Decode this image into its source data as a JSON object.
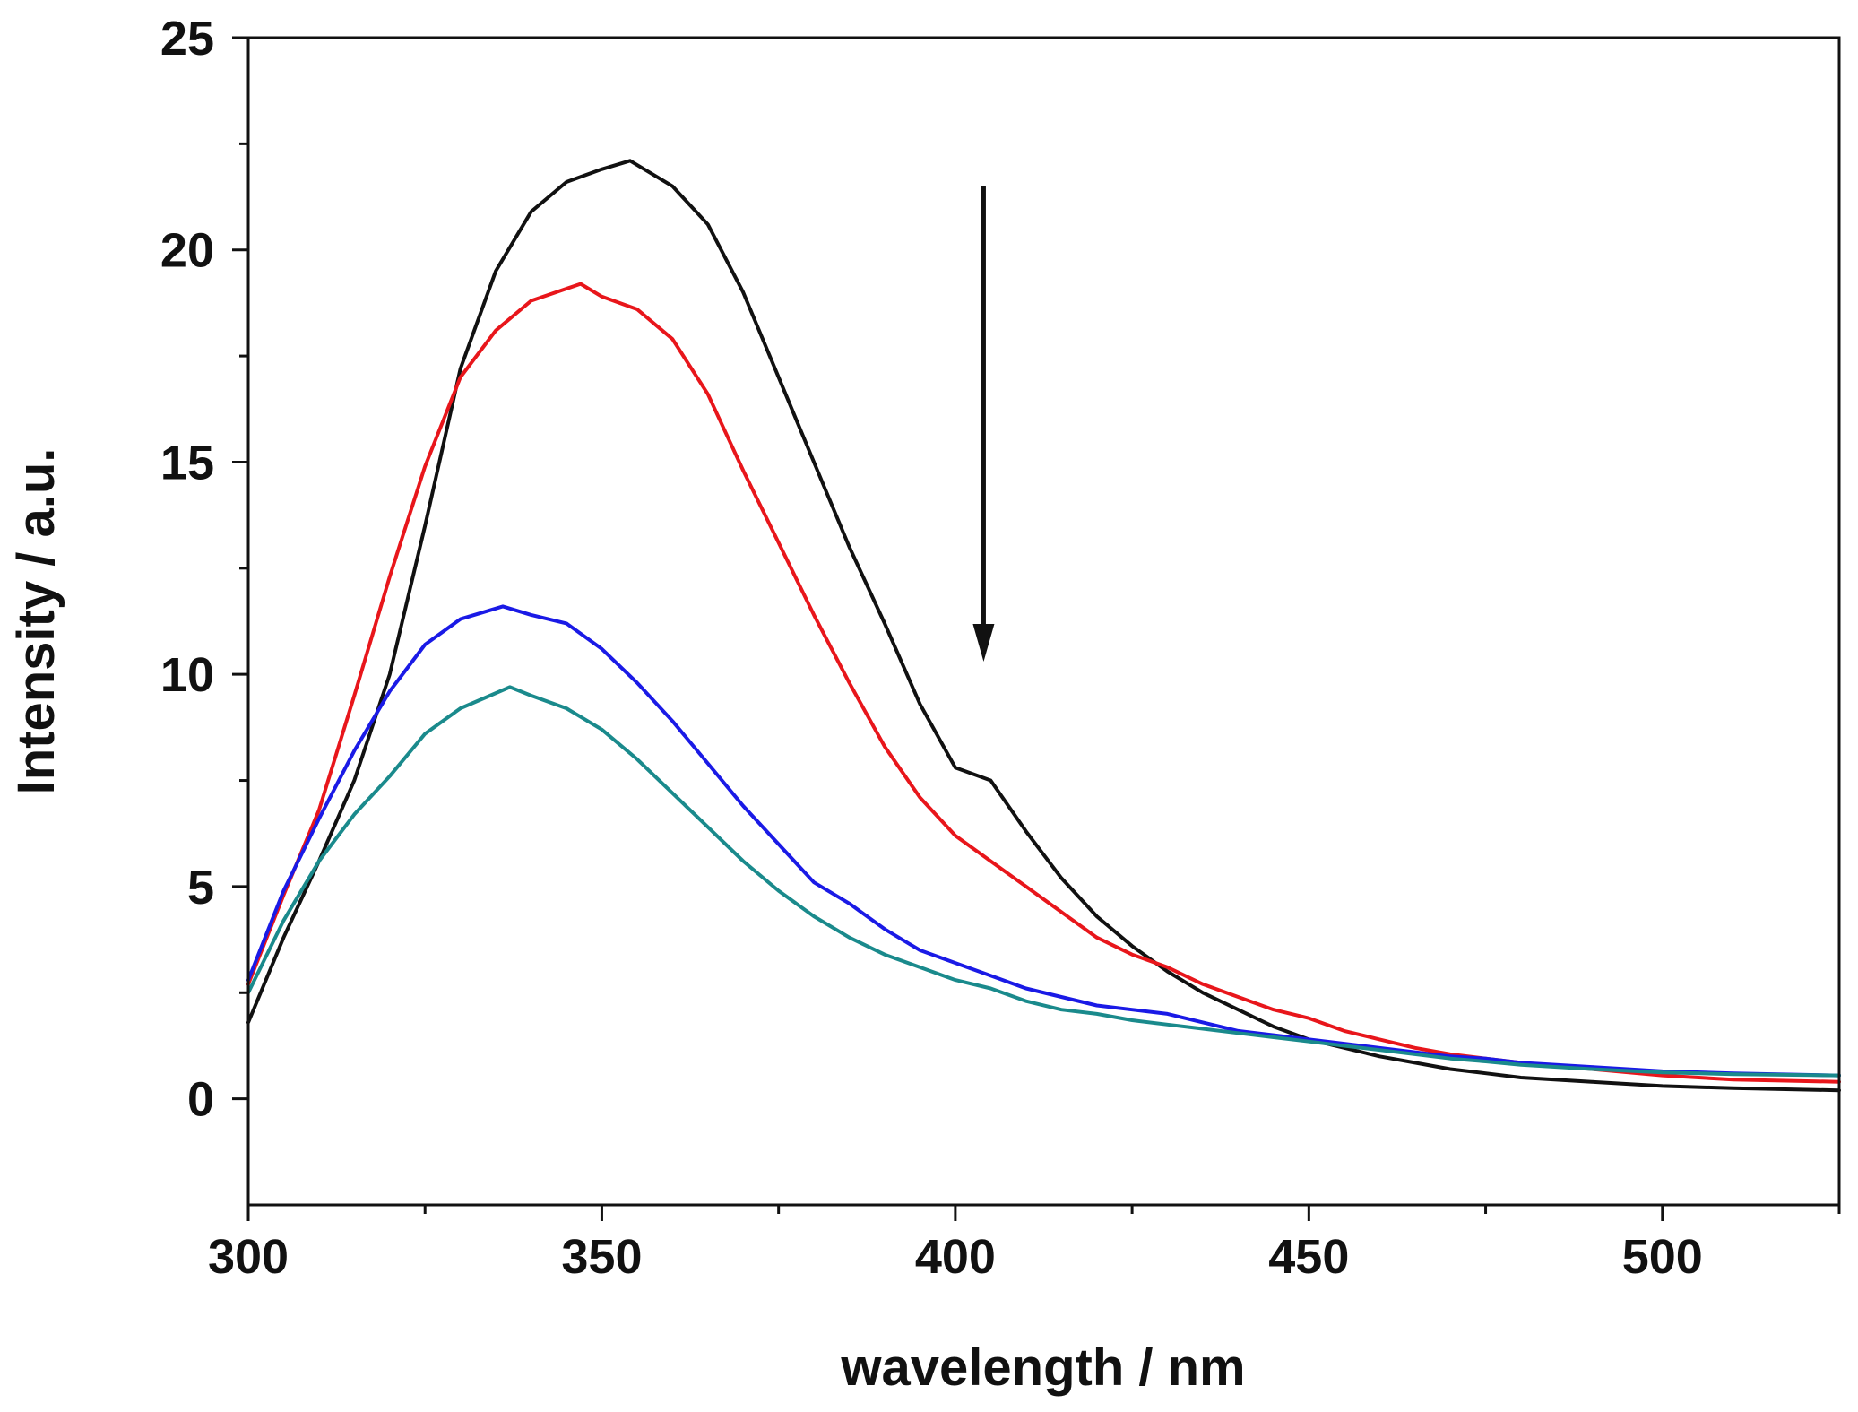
{
  "chart_data": {
    "type": "line",
    "title": "",
    "xlabel": "wavelength / nm",
    "ylabel": "Intensity / a.u.",
    "xlim": [
      300,
      525
    ],
    "ylim": [
      -2.5,
      25
    ],
    "x_major_ticks": [
      300,
      350,
      400,
      450,
      500
    ],
    "x_tick_labels": [
      "300",
      "350",
      "400",
      "450",
      "500"
    ],
    "x_minor_ticks": [
      325,
      375,
      425,
      475,
      525
    ],
    "y_major_ticks": [
      0,
      5,
      10,
      15,
      20,
      25
    ],
    "y_tick_labels": [
      "0",
      "5",
      "10",
      "15",
      "20",
      "25"
    ],
    "y_minor_ticks": [
      2.5,
      7.5,
      12.5,
      17.5,
      22.5
    ],
    "grid": false,
    "legend": "none",
    "annotation": {
      "type": "arrow",
      "direction": "down",
      "x": 404,
      "y_start": 21.5,
      "y_end": 10.3,
      "color": "#111111"
    },
    "series": [
      {
        "name": "black",
        "color": "#111111",
        "x": [
          300,
          305,
          310,
          315,
          320,
          325,
          330,
          335,
          340,
          345,
          350,
          354,
          360,
          365,
          370,
          375,
          380,
          385,
          390,
          395,
          400,
          405,
          410,
          415,
          420,
          425,
          430,
          435,
          440,
          445,
          450,
          455,
          460,
          465,
          470,
          475,
          480,
          490,
          500,
          510,
          525
        ],
        "y": [
          1.8,
          3.8,
          5.6,
          7.5,
          10.0,
          13.5,
          17.2,
          19.5,
          20.9,
          21.6,
          21.9,
          22.1,
          21.5,
          20.6,
          19.0,
          17.0,
          15.0,
          13.0,
          11.2,
          9.3,
          7.8,
          7.5,
          6.3,
          5.2,
          4.3,
          3.6,
          3.0,
          2.5,
          2.1,
          1.7,
          1.4,
          1.2,
          1.0,
          0.85,
          0.7,
          0.6,
          0.5,
          0.4,
          0.3,
          0.25,
          0.2
        ]
      },
      {
        "name": "red",
        "color": "#e8161b",
        "x": [
          300,
          305,
          310,
          315,
          320,
          325,
          330,
          335,
          340,
          347,
          350,
          355,
          360,
          365,
          370,
          375,
          380,
          385,
          390,
          395,
          400,
          405,
          410,
          415,
          420,
          425,
          430,
          435,
          440,
          445,
          450,
          455,
          460,
          465,
          470,
          475,
          480,
          490,
          500,
          510,
          525
        ],
        "y": [
          2.7,
          4.8,
          6.8,
          9.5,
          12.3,
          14.9,
          17.0,
          18.1,
          18.8,
          19.2,
          18.9,
          18.6,
          17.9,
          16.6,
          14.8,
          13.1,
          11.4,
          9.8,
          8.3,
          7.1,
          6.2,
          5.6,
          5.0,
          4.4,
          3.8,
          3.4,
          3.1,
          2.7,
          2.4,
          2.1,
          1.9,
          1.6,
          1.4,
          1.2,
          1.05,
          0.95,
          0.85,
          0.7,
          0.55,
          0.45,
          0.4
        ]
      },
      {
        "name": "blue",
        "color": "#1a1ae6",
        "x": [
          300,
          305,
          310,
          315,
          320,
          325,
          330,
          336,
          340,
          345,
          350,
          355,
          360,
          365,
          370,
          375,
          380,
          385,
          390,
          395,
          400,
          405,
          410,
          415,
          420,
          425,
          430,
          435,
          440,
          445,
          450,
          455,
          460,
          465,
          470,
          475,
          480,
          490,
          500,
          510,
          525
        ],
        "y": [
          2.8,
          4.9,
          6.6,
          8.2,
          9.6,
          10.7,
          11.3,
          11.6,
          11.4,
          11.2,
          10.6,
          9.8,
          8.9,
          7.9,
          6.9,
          6.0,
          5.1,
          4.6,
          4.0,
          3.5,
          3.2,
          2.9,
          2.6,
          2.4,
          2.2,
          2.1,
          2.0,
          1.8,
          1.6,
          1.5,
          1.4,
          1.3,
          1.2,
          1.1,
          1.0,
          0.95,
          0.85,
          0.75,
          0.65,
          0.6,
          0.55
        ]
      },
      {
        "name": "teal",
        "color": "#1a8a8c",
        "x": [
          300,
          305,
          310,
          315,
          320,
          325,
          330,
          337,
          340,
          345,
          350,
          355,
          360,
          365,
          370,
          375,
          380,
          385,
          390,
          395,
          400,
          405,
          410,
          415,
          420,
          425,
          430,
          435,
          440,
          445,
          450,
          455,
          460,
          465,
          470,
          475,
          480,
          490,
          500,
          510,
          525
        ],
        "y": [
          2.5,
          4.2,
          5.6,
          6.7,
          7.6,
          8.6,
          9.2,
          9.7,
          9.5,
          9.2,
          8.7,
          8.0,
          7.2,
          6.4,
          5.6,
          4.9,
          4.3,
          3.8,
          3.4,
          3.1,
          2.8,
          2.6,
          2.3,
          2.1,
          2.0,
          1.85,
          1.75,
          1.65,
          1.55,
          1.45,
          1.35,
          1.25,
          1.15,
          1.05,
          0.95,
          0.88,
          0.8,
          0.7,
          0.62,
          0.58,
          0.55
        ]
      }
    ]
  }
}
